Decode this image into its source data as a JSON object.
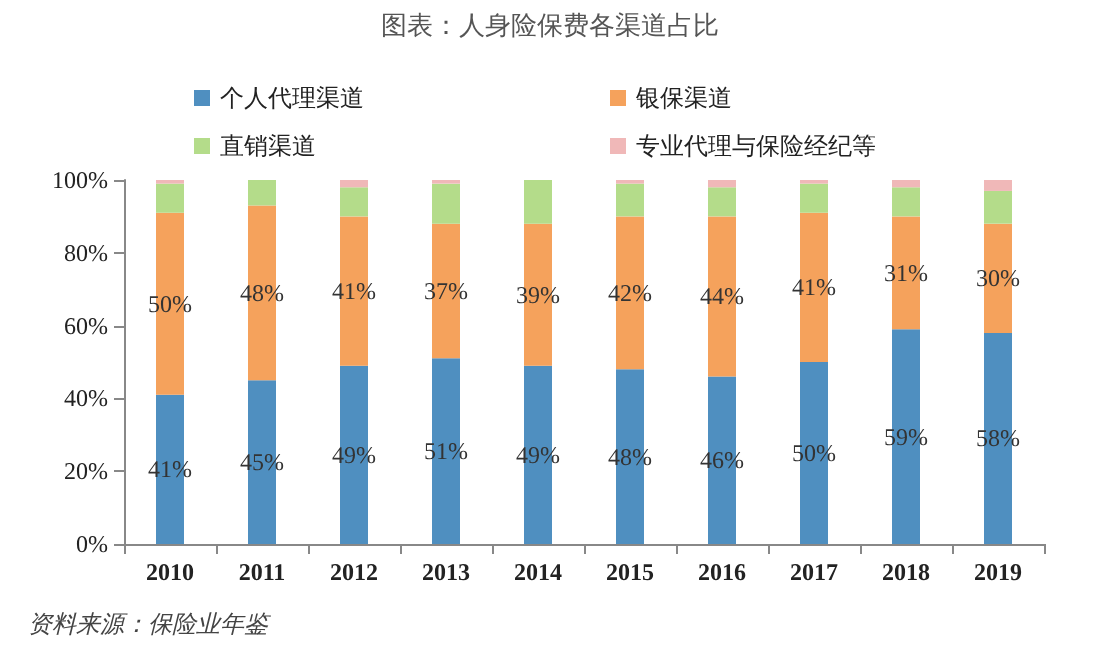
{
  "chart_data": {
    "type": "bar",
    "title": "图表：人身险保费各渠道占比",
    "categories": [
      "2010",
      "2011",
      "2012",
      "2013",
      "2014",
      "2015",
      "2016",
      "2017",
      "2018",
      "2019"
    ],
    "stacked": true,
    "series": [
      {
        "name": "个人代理渠道",
        "color": "#4f8fc0",
        "values": [
          41,
          45,
          49,
          51,
          49,
          48,
          46,
          50,
          59,
          58
        ],
        "value_labels": [
          "41%",
          "45%",
          "49%",
          "51%",
          "49%",
          "48%",
          "46%",
          "50%",
          "59%",
          "58%"
        ]
      },
      {
        "name": "银保渠道",
        "color": "#f5a25c",
        "values": [
          50,
          48,
          41,
          37,
          39,
          42,
          44,
          41,
          31,
          30
        ],
        "value_labels": [
          "50%",
          "48%",
          "41%",
          "37%",
          "39%",
          "42%",
          "44%",
          "41%",
          "31%",
          "30%"
        ]
      },
      {
        "name": "直销渠道",
        "color": "#b4dc8a",
        "values": [
          8,
          7,
          8,
          11,
          12,
          9,
          8,
          8,
          8,
          9
        ]
      },
      {
        "name": "专业代理与保险经纪等",
        "color": "#f0b8b8",
        "values": [
          1,
          0,
          2,
          1,
          0,
          1,
          2,
          1,
          2,
          3
        ]
      }
    ],
    "ylim": [
      0,
      100
    ],
    "yticks": [
      {
        "value": 0,
        "label": "0%"
      },
      {
        "value": 20,
        "label": "20%"
      },
      {
        "value": 40,
        "label": "40%"
      },
      {
        "value": 60,
        "label": "60%"
      },
      {
        "value": 80,
        "label": "80%"
      },
      {
        "value": 100,
        "label": "100%"
      }
    ],
    "grid": false,
    "legend": "top",
    "annotations": [
      "资料来源：保险业年鉴"
    ]
  }
}
